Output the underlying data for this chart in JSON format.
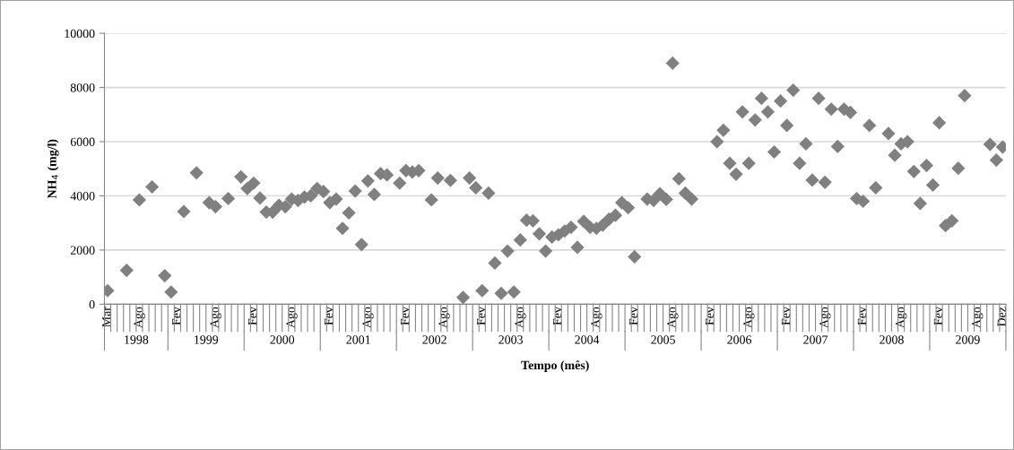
{
  "chart_data": {
    "type": "scatter",
    "xlabel": "Tempo (mês)",
    "ylabel": "NH$_{4}$ (mg/l)",
    "categories": [
      "Mar",
      null,
      null,
      null,
      null,
      "Ago",
      null,
      null,
      null,
      null,
      null,
      "Fev",
      null,
      null,
      null,
      null,
      null,
      "Ago",
      null,
      null,
      null,
      null,
      null,
      "Fev",
      null,
      null,
      null,
      null,
      null,
      "Ago",
      null,
      null,
      null,
      null,
      null,
      "Fev",
      null,
      null,
      null,
      null,
      null,
      "Ago",
      null,
      null,
      null,
      null,
      null,
      "Fev",
      null,
      null,
      null,
      null,
      null,
      "Ago",
      null,
      null,
      null,
      null,
      null,
      "Fev",
      null,
      null,
      null,
      null,
      null,
      "Ago",
      null,
      null,
      null,
      null,
      null,
      "Fev",
      null,
      null,
      null,
      null,
      null,
      "Ago",
      null,
      null,
      null,
      null,
      null,
      "Fev",
      null,
      null,
      null,
      null,
      null,
      "Ago",
      null,
      null,
      null,
      null,
      null,
      "Fev",
      null,
      null,
      null,
      null,
      null,
      "Ago",
      null,
      null,
      null,
      null,
      null,
      "Fev",
      null,
      null,
      null,
      null,
      null,
      "Ago",
      null,
      null,
      null,
      null,
      null,
      "Fev",
      null,
      null,
      null,
      null,
      null,
      "Ago",
      null,
      null,
      null,
      null,
      null,
      "Fev",
      null,
      null,
      null,
      null,
      null,
      "Ago",
      null,
      null,
      null,
      "Dez"
    ],
    "series": [
      {
        "color": "#808080",
        "values": [
          500,
          null,
          null,
          1250,
          null,
          3850,
          null,
          4330,
          null,
          1050,
          450,
          null,
          3420,
          null,
          4850,
          null,
          3750,
          3600,
          null,
          3900,
          null,
          4700,
          4270,
          4470,
          3920,
          3400,
          3400,
          3650,
          3600,
          3880,
          3830,
          3950,
          4000,
          4270,
          4160,
          3750,
          3880,
          2800,
          3370,
          4180,
          2200,
          4550,
          4050,
          4820,
          4770,
          null,
          4470,
          4930,
          4880,
          4930,
          null,
          3850,
          4660,
          null,
          4570,
          null,
          250,
          4660,
          4300,
          500,
          4100,
          1520,
          400,
          1960,
          450,
          2370,
          3100,
          3080,
          2600,
          1960,
          2480,
          2560,
          2700,
          2840,
          2100,
          3060,
          2840,
          2800,
          2920,
          3140,
          3280,
          3750,
          3560,
          1750,
          null,
          3880,
          3830,
          4080,
          3870,
          8900,
          4630,
          4100,
          3880,
          null,
          null,
          null,
          6000,
          6420,
          5200,
          4800,
          7100,
          5200,
          6800,
          7600,
          7100,
          5620,
          7500,
          6600,
          7900,
          5200,
          5920,
          4580,
          7600,
          4500,
          7200,
          5820,
          7200,
          7080,
          3900,
          3800,
          6600,
          4300,
          null,
          6300,
          5500,
          5920,
          6000,
          4900,
          3720,
          5120,
          4400,
          6700,
          2900,
          3080,
          5020,
          7700,
          null,
          null,
          null,
          5900,
          5320,
          5800
        ]
      }
    ],
    "ylim": [
      0,
      10000
    ],
    "yticks": [
      0,
      2000,
      4000,
      6000,
      8000,
      10000
    ],
    "grid": "y",
    "marker": "diamond",
    "annotations": [
      "1998",
      "1999",
      "2000",
      "2001",
      "2002",
      "2003",
      "2004",
      "2005",
      "2006",
      "2007",
      "2008",
      "2009"
    ]
  }
}
